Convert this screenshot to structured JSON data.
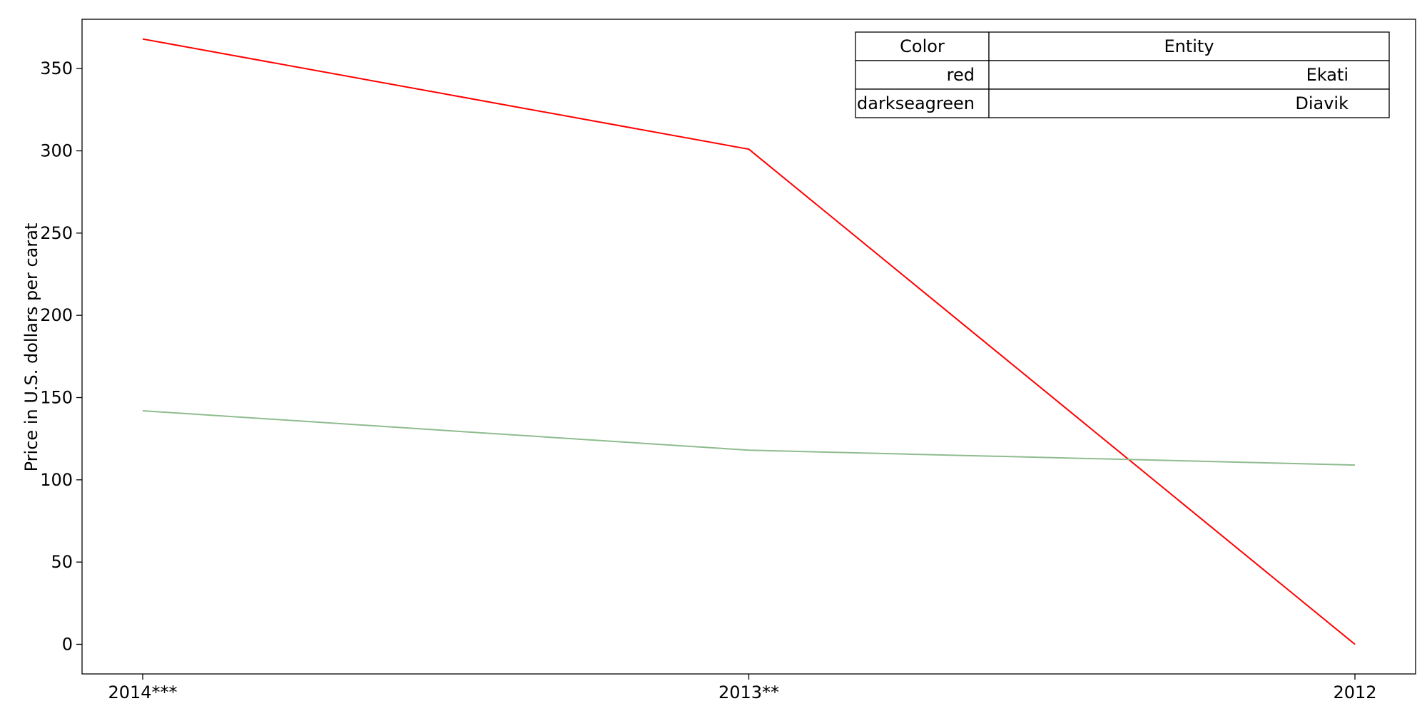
{
  "chart_data": {
    "type": "line",
    "categories": [
      "2014***",
      "2013**",
      "2012"
    ],
    "series": [
      {
        "name": "Ekati",
        "color": "red",
        "color_hex": "#ff0000",
        "values": [
          368,
          301,
          0
        ]
      },
      {
        "name": "Diavik",
        "color": "darkseagreen",
        "color_hex": "#8fbc8f",
        "values": [
          142,
          118,
          109
        ]
      }
    ],
    "xlabel": "",
    "ylabel": "Price in U.S. dollars per carat",
    "ylim": [
      -18,
      380
    ],
    "yticks": [
      0,
      50,
      100,
      150,
      200,
      250,
      300,
      350
    ],
    "grid": false,
    "legend": {
      "placement": "top-right",
      "style": "table",
      "headers": [
        "Color",
        "Entity"
      ],
      "rows": [
        [
          "red",
          "Ekati"
        ],
        [
          "darkseagreen",
          "Diavik"
        ]
      ]
    }
  }
}
